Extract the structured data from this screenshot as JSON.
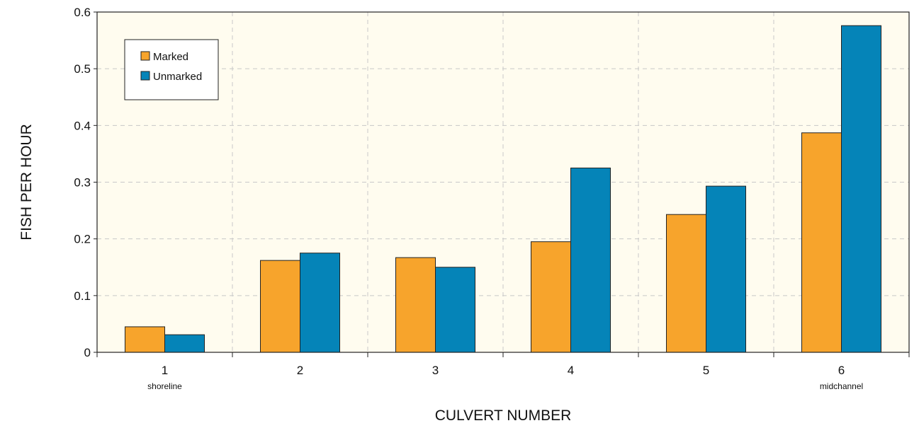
{
  "chart_data": {
    "type": "bar",
    "categories": [
      "1",
      "2",
      "3",
      "4",
      "5",
      "6"
    ],
    "category_sublabels": [
      "shoreline",
      "",
      "",
      "",
      "",
      "midchannel"
    ],
    "series": [
      {
        "name": "Marked",
        "color": "#f7a42c",
        "values": [
          0.045,
          0.162,
          0.167,
          0.195,
          0.243,
          0.387
        ]
      },
      {
        "name": "Unmarked",
        "color": "#0584b8",
        "values": [
          0.031,
          0.175,
          0.15,
          0.325,
          0.293,
          0.576
        ]
      }
    ],
    "title": "",
    "xlabel": "CULVERT NUMBER",
    "ylabel": "FISH PER HOUR",
    "ylim": [
      0,
      0.6
    ],
    "yticks": [
      "0",
      "0.1",
      "0.2",
      "0.3",
      "0.4",
      "0.5",
      "0.6"
    ],
    "grid": true,
    "legend_position": "top-left",
    "plot_background": "#fffcef"
  }
}
